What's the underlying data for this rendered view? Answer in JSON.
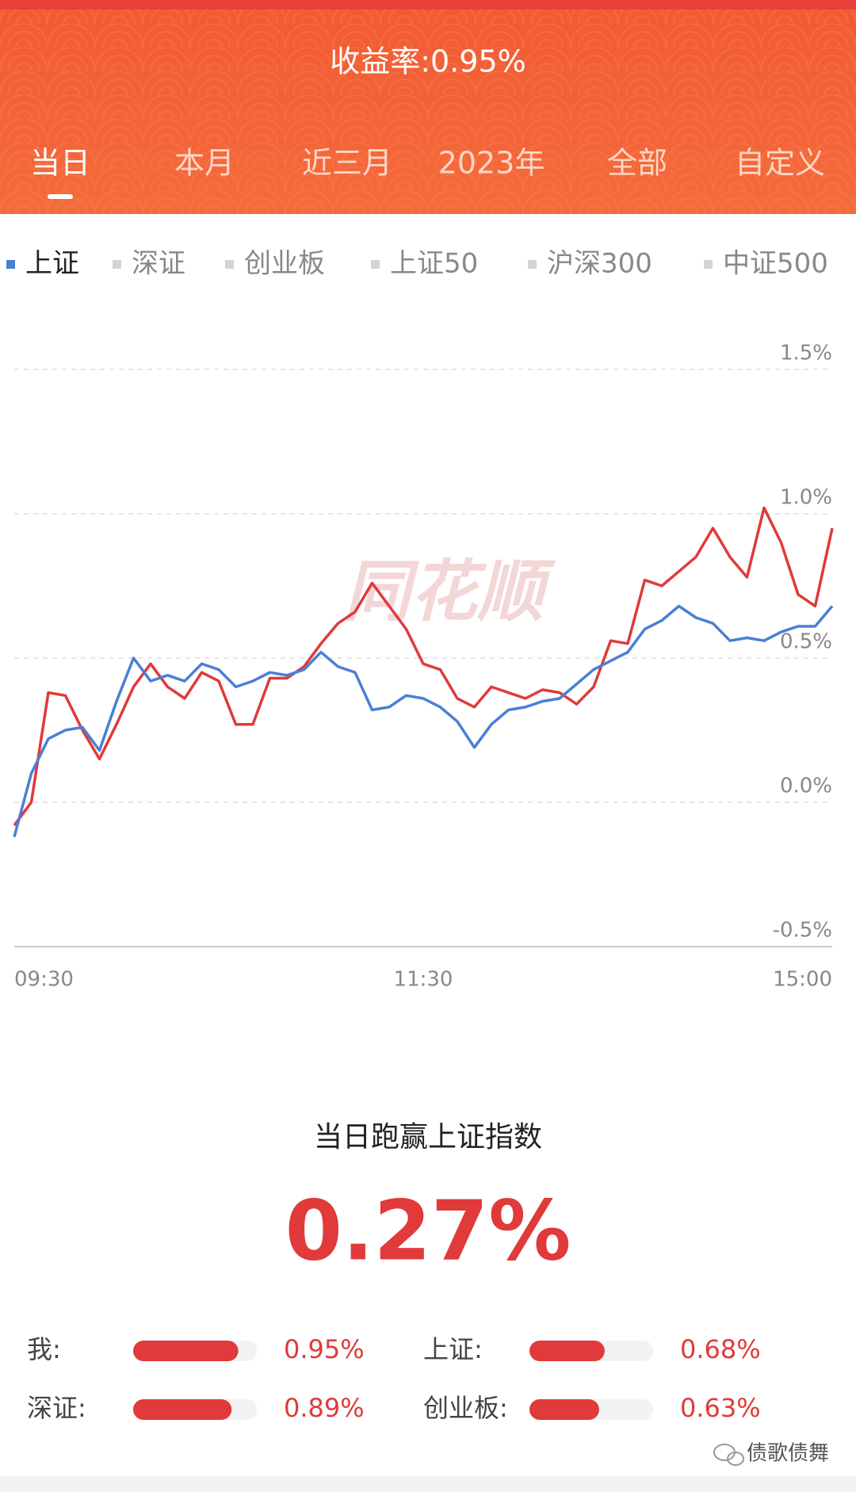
{
  "header": {
    "title": "收益率:0.95%",
    "tabs": [
      "当日",
      "本月",
      "近三月",
      "2023年",
      "全部",
      "自定义"
    ]
  },
  "index_tabs": [
    "上证",
    "深证",
    "创业板",
    "上证50",
    "沪深300",
    "中证500"
  ],
  "chart_data": {
    "type": "line",
    "watermark": "同花顺",
    "categories": [
      "09:30",
      null,
      null,
      null,
      null,
      null,
      null,
      null,
      null,
      null,
      null,
      null,
      null,
      null,
      null,
      null,
      null,
      null,
      null,
      null,
      null,
      null,
      null,
      null,
      "11:30",
      null,
      null,
      null,
      null,
      null,
      null,
      null,
      null,
      null,
      null,
      null,
      null,
      null,
      null,
      null,
      null,
      null,
      null,
      null,
      null,
      null,
      null,
      null,
      "15:00"
    ],
    "series": [
      {
        "color": "#e03a3a",
        "values": [
          -0.08,
          0.0,
          0.38,
          0.37,
          0.25,
          0.15,
          0.27,
          0.4,
          0.48,
          0.4,
          0.36,
          0.45,
          0.42,
          0.27,
          0.27,
          0.43,
          0.43,
          0.47,
          0.55,
          0.62,
          0.66,
          0.76,
          0.68,
          0.6,
          0.48,
          0.46,
          0.36,
          0.33,
          0.4,
          0.38,
          0.36,
          0.39,
          0.38,
          0.34,
          0.4,
          0.56,
          0.55,
          0.77,
          0.75,
          0.8,
          0.85,
          0.95,
          0.85,
          0.78,
          1.02,
          0.9,
          0.72,
          0.68,
          0.95
        ]
      },
      {
        "color": "#4a7fd6",
        "values": [
          -0.12,
          0.1,
          0.22,
          0.25,
          0.26,
          0.18,
          0.35,
          0.5,
          0.42,
          0.44,
          0.42,
          0.48,
          0.46,
          0.4,
          0.42,
          0.45,
          0.44,
          0.46,
          0.52,
          0.47,
          0.45,
          0.32,
          0.33,
          0.37,
          0.36,
          0.33,
          0.28,
          0.19,
          0.27,
          0.32,
          0.33,
          0.35,
          0.36,
          0.41,
          0.46,
          0.49,
          0.52,
          0.6,
          0.63,
          0.68,
          0.64,
          0.62,
          0.56,
          0.57,
          0.56,
          0.59,
          0.61,
          0.61,
          0.68
        ]
      }
    ],
    "ylim": [
      -0.5,
      1.5
    ],
    "yticks": [
      {
        "value": -0.5,
        "label": "-0.5%"
      },
      {
        "value": 0.0,
        "label": "0.0%"
      },
      {
        "value": 0.5,
        "label": "0.5%"
      },
      {
        "value": 1.0,
        "label": "1.0%"
      },
      {
        "value": 1.5,
        "label": "1.5%"
      }
    ],
    "grid": true
  },
  "summary": {
    "title": "当日跑赢上证指数",
    "value": "0.27%"
  },
  "comparison": [
    {
      "name": "我:",
      "value": 0.95,
      "value_label": "0.95%"
    },
    {
      "name": "上证:",
      "value": 0.68,
      "value_label": "0.68%"
    },
    {
      "name": "深证:",
      "value": 0.89,
      "value_label": "0.89%"
    },
    {
      "name": "创业板:",
      "value": 0.63,
      "value_label": "0.63%"
    }
  ],
  "footer": "债歌债舞"
}
